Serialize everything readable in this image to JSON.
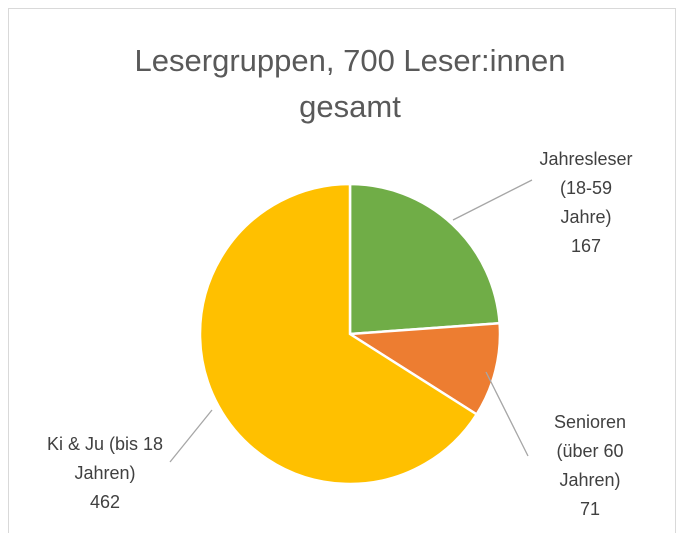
{
  "chart_data": {
    "type": "pie",
    "title": "Lesergruppen, 700 Leser:innen gesamt",
    "categories": [
      "Jahresleser (18-59 Jahre)",
      "Senioren (über 60 Jahren)",
      "Ki & Ju (bis 18 Jahren)"
    ],
    "values": [
      167,
      71,
      462
    ],
    "colors": [
      "#70AD47",
      "#ED7D31",
      "#FFC000"
    ]
  }
}
